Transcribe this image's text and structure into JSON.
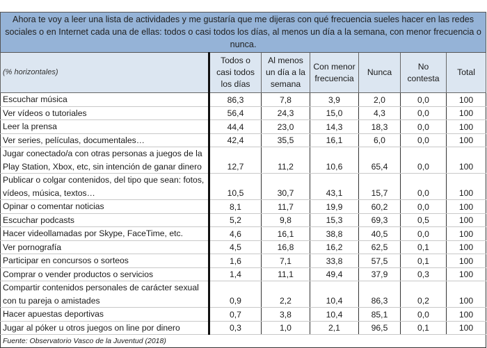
{
  "title": "Ahora te voy a leer una lista de actividades y me gustaría que me dijeras con qué frecuencia sueles hacer en las redes sociales o en Internet cada una de ellas: todos o casi todos los días, al menos un día a la semana, con menor frecuencia o nunca.",
  "colors": {
    "title_bg": "#95b3d7",
    "header_bg": "#dce6f1"
  },
  "table": {
    "row_header_label": "(% horizontales)",
    "columns": [
      "Todos o casi todos los días",
      "Al menos un día a la semana",
      "Con menor frecuencia",
      "Nunca",
      "No contesta",
      "Total"
    ],
    "rows": [
      {
        "label": "Escuchar música",
        "values": [
          "86,3",
          "7,8",
          "3,9",
          "2,0",
          "0,0",
          "100"
        ]
      },
      {
        "label": "Ver vídeos o tutoriales",
        "values": [
          "56,4",
          "24,3",
          "15,0",
          "4,3",
          "0,0",
          "100"
        ]
      },
      {
        "label": "Leer la prensa",
        "values": [
          "44,4",
          "23,0",
          "14,3",
          "18,3",
          "0,0",
          "100"
        ]
      },
      {
        "label": "Ver series, películas, documentales…",
        "values": [
          "42,4",
          "35,5",
          "16,1",
          "6,0",
          "0,0",
          "100"
        ]
      },
      {
        "label": "Jugar conectado/a con otras personas a juegos de la Play Station, Xbox, etc, sin intención de ganar dinero",
        "values": [
          "12,7",
          "11,2",
          "10,6",
          "65,4",
          "0,0",
          "100"
        ]
      },
      {
        "label": "Publicar o colgar contenidos, del tipo que sean: fotos, vídeos, música, textos…",
        "values": [
          "10,5",
          "30,7",
          "43,1",
          "15,7",
          "0,0",
          "100"
        ]
      },
      {
        "label": "Opinar o comentar noticias",
        "values": [
          "8,1",
          "11,7",
          "19,9",
          "60,2",
          "0,0",
          "100"
        ]
      },
      {
        "label": "Escuchar podcasts",
        "values": [
          "5,2",
          "9,8",
          "15,3",
          "69,3",
          "0,5",
          "100"
        ]
      },
      {
        "label": "Hacer videollamadas por Skype, FaceTime, etc.",
        "values": [
          "4,6",
          "16,1",
          "38,8",
          "40,5",
          "0,0",
          "100"
        ]
      },
      {
        "label": "Ver pornografía",
        "values": [
          "4,5",
          "16,8",
          "16,2",
          "62,5",
          "0,1",
          "100"
        ]
      },
      {
        "label": "Participar en concursos o sorteos",
        "values": [
          "1,6",
          "7,1",
          "33,8",
          "57,5",
          "0,1",
          "100"
        ]
      },
      {
        "label": "Comprar o vender productos o servicios",
        "values": [
          "1,4",
          "11,1",
          "49,4",
          "37,9",
          "0,3",
          "100"
        ]
      },
      {
        "label": "Compartir contenidos personales de carácter sexual con tu pareja o amistades",
        "values": [
          "0,9",
          "2,2",
          "10,4",
          "86,3",
          "0,2",
          "100"
        ]
      },
      {
        "label": "Hacer apuestas deportivas",
        "values": [
          "0,7",
          "3,8",
          "10,4",
          "85,1",
          "0,0",
          "100"
        ]
      },
      {
        "label": "Jugar al póker u otros juegos on line por dinero",
        "values": [
          "0,3",
          "1,0",
          "2,1",
          "96,5",
          "0,1",
          "100"
        ]
      }
    ]
  },
  "footer": "Fuente: Observatorio Vasco de la Juventud (2018)"
}
